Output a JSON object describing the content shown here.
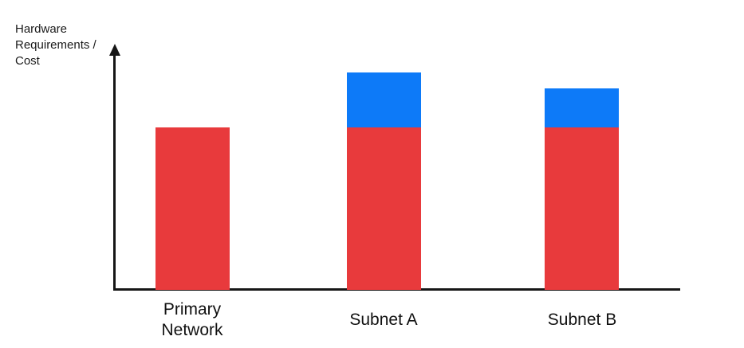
{
  "chart": {
    "y_axis_label": "Hardware\nRequirements /\nCost"
  },
  "chart_data": {
    "type": "bar",
    "stacked": true,
    "title": "",
    "xlabel": "",
    "ylabel": "Hardware Requirements / Cost",
    "categories": [
      "Primary Network",
      "Subnet A",
      "Subnet B"
    ],
    "display_labels": [
      "Primary\nNetwork",
      "Subnet A",
      "Subnet B"
    ],
    "series": [
      {
        "name": "red-base",
        "color": "#E83A3C",
        "values": [
          100,
          100,
          100
        ]
      },
      {
        "name": "blue-overhead",
        "color": "#0D7AF8",
        "values": [
          0,
          34,
          24
        ]
      }
    ],
    "value_units": "relative (red base bar = 100, no numeric axis shown)",
    "ylim": [
      0,
      151
    ],
    "grid": false,
    "legend": "none",
    "axis_color": "#161616"
  }
}
